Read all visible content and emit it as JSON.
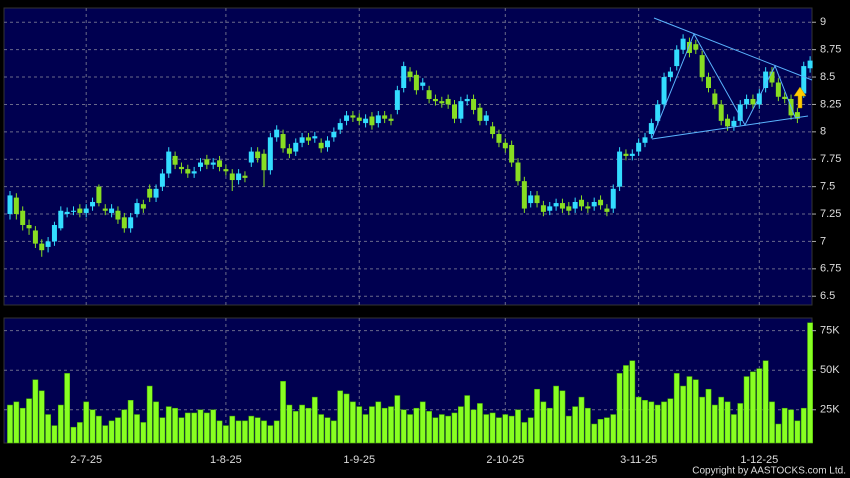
{
  "chart_data": {
    "type": "candlestick",
    "categories": [
      null,
      null,
      null,
      null,
      null,
      null,
      null,
      null,
      null,
      null,
      null,
      null,
      "2-7-25",
      null,
      null,
      null,
      null,
      null,
      null,
      null,
      null,
      null,
      null,
      null,
      null,
      null,
      null,
      null,
      null,
      null,
      null,
      null,
      null,
      null,
      "1-8-25",
      null,
      null,
      null,
      null,
      null,
      null,
      null,
      null,
      null,
      null,
      null,
      null,
      null,
      null,
      null,
      null,
      null,
      null,
      null,
      null,
      "1-9-25",
      null,
      null,
      null,
      null,
      null,
      null,
      null,
      null,
      null,
      null,
      null,
      null,
      null,
      null,
      null,
      null,
      null,
      null,
      null,
      null,
      null,
      null,
      "2-10-25",
      null,
      null,
      null,
      null,
      null,
      null,
      null,
      null,
      null,
      null,
      null,
      null,
      null,
      null,
      null,
      null,
      null,
      null,
      null,
      null,
      "3-11-25",
      null,
      null,
      null,
      null,
      null,
      null,
      null,
      null,
      null,
      null,
      null,
      null,
      null,
      null,
      null,
      null,
      null,
      null,
      "1-12-25",
      null,
      null,
      null,
      null,
      null,
      null,
      null,
      null
    ],
    "open": [
      7.25,
      7.4,
      7.28,
      7.15,
      7.1,
      6.98,
      6.95,
      7.0,
      7.12,
      7.25,
      7.27,
      7.3,
      7.26,
      7.32,
      7.5,
      7.3,
      7.26,
      7.28,
      7.22,
      7.12,
      7.25,
      7.34,
      7.48,
      7.4,
      7.5,
      7.62,
      7.78,
      7.68,
      7.66,
      7.62,
      7.68,
      7.75,
      7.7,
      7.74,
      7.66,
      7.62,
      7.56,
      7.6,
      7.72,
      7.82,
      7.8,
      7.65,
      7.95,
      7.98,
      7.85,
      7.82,
      7.9,
      7.95,
      7.94,
      7.9,
      7.86,
      7.95,
      8.02,
      8.1,
      8.15,
      8.13,
      8.08,
      8.14,
      8.08,
      8.15,
      8.12,
      8.2,
      8.4,
      8.55,
      8.52,
      8.42,
      8.38,
      8.3,
      8.28,
      8.3,
      8.25,
      8.12,
      8.28,
      8.3,
      8.22,
      8.1,
      8.05,
      7.98,
      7.9,
      7.88,
      7.72,
      7.55,
      7.35,
      7.42,
      7.33,
      7.28,
      7.32,
      7.35,
      7.32,
      7.3,
      7.38,
      7.32,
      7.32,
      7.38,
      7.3,
      7.3,
      7.5,
      7.8,
      7.78,
      7.82,
      7.9,
      7.98,
      8.1,
      8.25,
      8.5,
      8.6,
      8.75,
      8.82,
      8.8,
      8.7,
      8.5,
      8.35,
      8.25,
      8.12,
      8.05,
      8.1,
      8.25,
      8.3,
      8.25,
      8.4,
      8.55,
      8.45,
      8.32,
      8.3,
      8.18,
      8.35,
      8.58
    ],
    "high": [
      7.46,
      7.44,
      7.32,
      7.2,
      7.14,
      7.02,
      7.04,
      7.18,
      7.32,
      7.31,
      7.32,
      7.34,
      7.34,
      7.4,
      7.52,
      7.34,
      7.34,
      7.32,
      7.26,
      7.26,
      7.39,
      7.38,
      7.52,
      7.52,
      7.66,
      7.86,
      7.82,
      7.72,
      7.7,
      7.68,
      7.76,
      7.79,
      7.76,
      7.78,
      7.7,
      7.66,
      7.66,
      7.64,
      7.86,
      7.86,
      7.84,
      7.99,
      8.06,
      8.02,
      7.89,
      7.94,
      7.99,
      7.99,
      8.0,
      7.94,
      7.96,
      8.04,
      8.12,
      8.19,
      8.19,
      8.17,
      8.16,
      8.18,
      8.19,
      8.19,
      8.16,
      8.42,
      8.64,
      8.59,
      8.56,
      8.49,
      8.42,
      8.34,
      8.32,
      8.34,
      8.29,
      8.32,
      8.34,
      8.34,
      8.26,
      8.19,
      8.09,
      8.02,
      7.94,
      7.92,
      7.76,
      7.59,
      7.46,
      7.46,
      7.37,
      7.36,
      7.39,
      7.39,
      7.36,
      7.4,
      7.42,
      7.36,
      7.4,
      7.42,
      7.34,
      7.52,
      7.86,
      7.84,
      7.84,
      7.94,
      7.99,
      8.12,
      8.29,
      8.54,
      8.59,
      8.79,
      8.89,
      8.86,
      8.84,
      8.74,
      8.54,
      8.39,
      8.29,
      8.16,
      8.14,
      8.29,
      8.34,
      8.34,
      8.39,
      8.59,
      8.59,
      8.49,
      8.36,
      8.34,
      8.22,
      8.64,
      8.69
    ],
    "low": [
      7.2,
      7.2,
      7.1,
      7.06,
      6.94,
      6.86,
      6.9,
      6.96,
      7.1,
      7.22,
      7.24,
      7.22,
      7.22,
      7.28,
      7.32,
      7.24,
      7.22,
      7.16,
      7.08,
      7.08,
      7.22,
      7.26,
      7.36,
      7.36,
      7.46,
      7.58,
      7.66,
      7.62,
      7.58,
      7.58,
      7.64,
      7.66,
      7.66,
      7.64,
      7.6,
      7.46,
      7.52,
      7.54,
      7.68,
      7.72,
      7.5,
      7.61,
      7.91,
      7.81,
      7.76,
      7.78,
      7.86,
      7.88,
      7.9,
      7.81,
      7.82,
      7.91,
      7.98,
      8.06,
      8.09,
      8.06,
      8.04,
      8.02,
      8.04,
      8.08,
      8.06,
      8.16,
      8.36,
      8.46,
      8.34,
      8.38,
      8.26,
      8.24,
      8.22,
      8.21,
      8.08,
      8.08,
      8.24,
      8.16,
      8.06,
      8.06,
      7.94,
      7.86,
      7.81,
      7.68,
      7.51,
      7.26,
      7.31,
      7.31,
      7.23,
      7.24,
      7.28,
      7.26,
      7.24,
      7.26,
      7.28,
      7.26,
      7.28,
      7.29,
      7.23,
      7.26,
      7.46,
      7.74,
      7.74,
      7.78,
      7.86,
      7.94,
      8.06,
      8.21,
      8.46,
      8.56,
      8.71,
      8.68,
      8.71,
      8.46,
      8.36,
      8.21,
      8.06,
      8.01,
      8.01,
      8.06,
      8.21,
      8.21,
      8.21,
      8.36,
      8.41,
      8.28,
      8.26,
      8.11,
      8.08,
      8.31,
      8.54
    ],
    "close": [
      7.42,
      7.25,
      7.15,
      7.12,
      6.98,
      6.92,
      7.0,
      7.15,
      7.28,
      7.27,
      7.28,
      7.26,
      7.3,
      7.36,
      7.35,
      7.28,
      7.3,
      7.2,
      7.12,
      7.22,
      7.35,
      7.3,
      7.4,
      7.48,
      7.62,
      7.82,
      7.7,
      7.66,
      7.62,
      7.64,
      7.72,
      7.7,
      7.72,
      7.68,
      7.64,
      7.56,
      7.62,
      7.58,
      7.82,
      7.76,
      7.65,
      7.95,
      8.02,
      7.85,
      7.8,
      7.9,
      7.95,
      7.92,
      7.96,
      7.85,
      7.92,
      8.0,
      8.08,
      8.15,
      8.13,
      8.1,
      8.12,
      8.06,
      8.15,
      8.12,
      8.1,
      8.38,
      8.6,
      8.5,
      8.38,
      8.45,
      8.3,
      8.28,
      8.26,
      8.25,
      8.12,
      8.28,
      8.3,
      8.2,
      8.1,
      8.15,
      7.98,
      7.9,
      7.85,
      7.72,
      7.55,
      7.3,
      7.42,
      7.35,
      7.27,
      7.32,
      7.35,
      7.3,
      7.28,
      7.36,
      7.32,
      7.3,
      7.36,
      7.33,
      7.27,
      7.48,
      7.82,
      7.78,
      7.8,
      7.9,
      7.95,
      8.08,
      8.25,
      8.5,
      8.55,
      8.75,
      8.85,
      8.72,
      8.75,
      8.5,
      8.4,
      8.25,
      8.1,
      8.05,
      8.1,
      8.25,
      8.3,
      8.25,
      8.35,
      8.55,
      8.45,
      8.32,
      8.3,
      8.15,
      8.12,
      8.6,
      8.65
    ],
    "up_color": "#33ddff",
    "down_color": "#88dd22",
    "ylim": [
      6.42,
      9.13
    ],
    "yticks": [
      6.5,
      6.75,
      7,
      7.25,
      7.5,
      7.75,
      8,
      8.25,
      8.5,
      8.75,
      9
    ],
    "grid": true,
    "volume": {
      "color": "#88ff22",
      "values": [
        28000,
        30000,
        26000,
        32000,
        44000,
        37000,
        22000,
        15000,
        28000,
        48000,
        14000,
        17000,
        30000,
        25000,
        21000,
        15000,
        18000,
        20000,
        25000,
        31000,
        22000,
        17000,
        40000,
        30000,
        20000,
        27000,
        26000,
        20000,
        23000,
        23000,
        25000,
        23000,
        25000,
        18000,
        15000,
        21000,
        18000,
        18000,
        21000,
        20000,
        18000,
        15000,
        18000,
        43000,
        28000,
        24000,
        28000,
        26000,
        33000,
        22000,
        20000,
        18000,
        37000,
        35000,
        30000,
        27000,
        22000,
        27000,
        30000,
        26000,
        27000,
        34000,
        25000,
        22000,
        26000,
        30000,
        24000,
        20000,
        22000,
        21000,
        23000,
        27000,
        34000,
        25000,
        29000,
        22000,
        23000,
        20000,
        22000,
        21000,
        25000,
        17000,
        20000,
        38000,
        30000,
        26000,
        40000,
        37000,
        21000,
        27000,
        33000,
        26000,
        16000,
        19000,
        20000,
        22000,
        48000,
        53000,
        56000,
        33000,
        31000,
        30000,
        28000,
        30000,
        32000,
        48000,
        40000,
        46000,
        44000,
        33000,
        38000,
        28000,
        33000,
        30000,
        22000,
        29000,
        46000,
        49000,
        51000,
        56000,
        30000,
        16000,
        26000,
        25000,
        18000,
        26000,
        80000
      ],
      "ylim": [
        4000,
        83000
      ],
      "yticks": [
        {
          "value": 25000,
          "label": "25K"
        },
        {
          "value": 50000,
          "label": "50K"
        },
        {
          "value": 75000,
          "label": "75K"
        }
      ]
    },
    "source": "Copyright by AASTOCKS.com Ltd."
  }
}
